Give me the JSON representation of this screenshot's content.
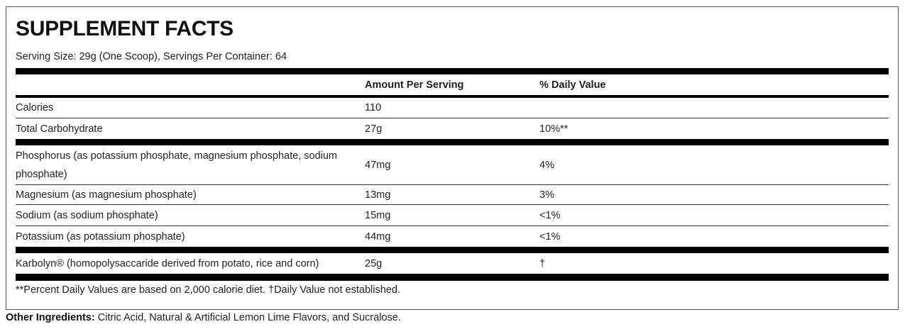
{
  "title": "SUPPLEMENT FACTS",
  "serving": "Serving Size: 29g (One Scoop), Servings Per Container: 64",
  "table": {
    "header": [
      "Amount Per Serving",
      "% Daily Value"
    ],
    "rows": [
      [
        "Calories",
        "110"
      ],
      [
        "Total Carbohydrate",
        "27g",
        "10%**"
      ],
      [
        "Phosphorus (as potassium phosphate, magnesium phosphate, sodium phosphate)",
        "47mg",
        "4%"
      ],
      [
        "Magnesium (as magnesium phosphate)",
        "13mg",
        "3%"
      ],
      [
        "Sodium (as sodium phosphate)",
        "15mg",
        "<1%"
      ],
      [
        "Potassium (as potassium phosphate)",
        "44mg",
        "<1%"
      ],
      [
        "Karbolyn® (homopolysaccaride derived from potato, rice and corn)",
        "25g",
        "†"
      ]
    ]
  },
  "footnote": "**Percent Daily Values are based on 2,000 calorie diet. †Daily Value not established.",
  "other_ingredients": {
    "label": "Other Ingredients:",
    "text": "Citric Acid, Natural & Artificial Lemon Lime Flavors, and Sucralose."
  }
}
